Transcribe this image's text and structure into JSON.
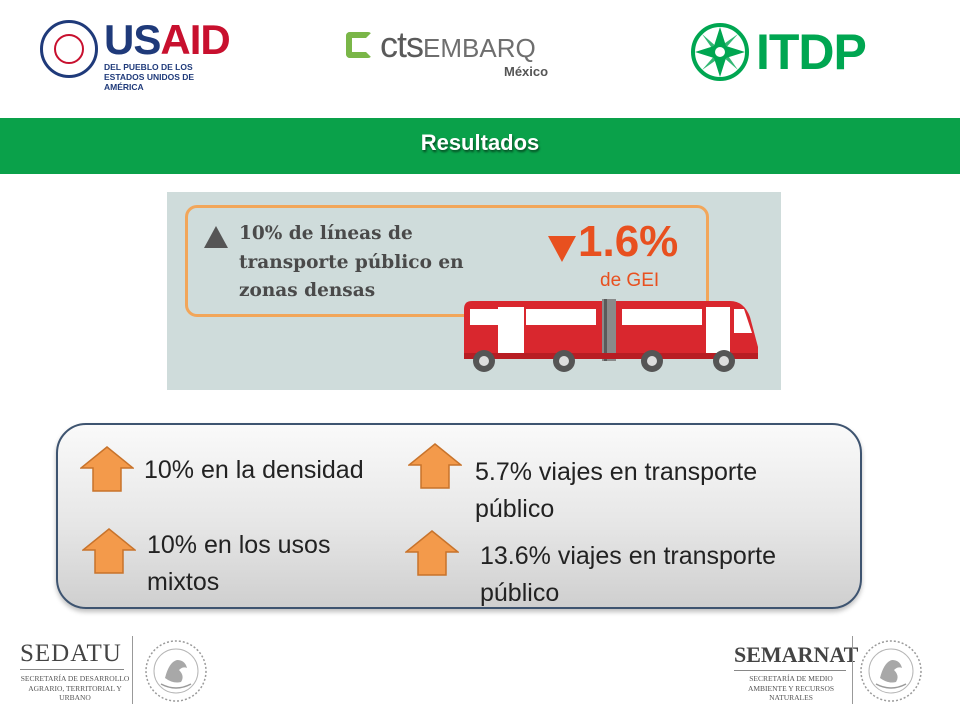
{
  "logos": {
    "usaid": {
      "word_us": "US",
      "word_aid": "AID",
      "subtitle": "DEL PUEBLO DE LOS ESTADOS UNIDOS DE AMÉRICA"
    },
    "cts": {
      "word_cts": "cts",
      "word_embarq": "EMBARQ",
      "country": "México"
    },
    "itdp": {
      "word": "ITDP"
    }
  },
  "banner": {
    "title": "Resultados"
  },
  "infographic": {
    "statement": "10% de líneas de\ntransporte público en\nzonas densas",
    "reduction_value": "1.6%",
    "reduction_label": "de GEI"
  },
  "results": [
    {
      "text": "10% en la densidad"
    },
    {
      "text": "5.7% viajes en transporte público"
    },
    {
      "text": "10% en los usos mixtos"
    },
    {
      "text": "13.6% viajes en transporte público"
    }
  ],
  "footer": {
    "sedatu": {
      "name": "SEDATU",
      "subtitle": "Secretaría de Desarrollo Agrario, Territorial y Urbano"
    },
    "semarnat": {
      "name": "SEMARNAT",
      "subtitle": "Secretaría de Medio Ambiente y Recursos Naturales"
    }
  },
  "colors": {
    "banner_green": "#0aa14a",
    "arrow_orange": "#f39a4b",
    "infographic_orange": "#e8501f",
    "bus_red": "#d9272e"
  }
}
